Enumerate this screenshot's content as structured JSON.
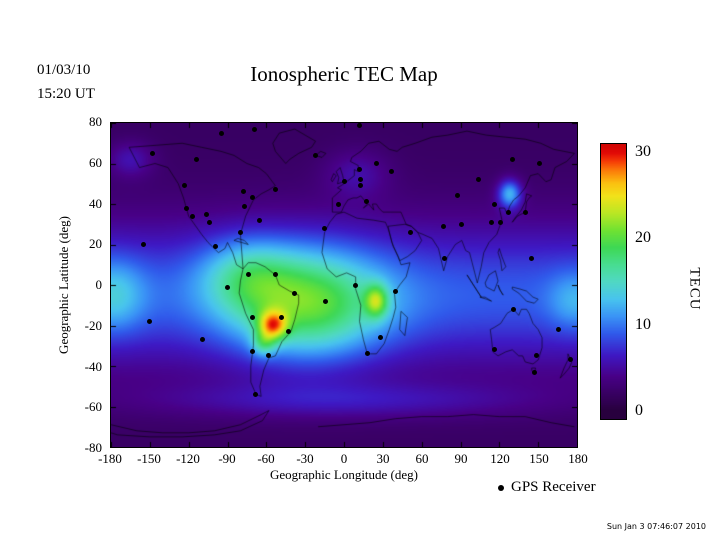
{
  "header": {
    "date": "01/03/10",
    "time": "15:20 UT",
    "title": "Ionospheric TEC Map"
  },
  "axes": {
    "x_label": "Geographic Longitude (deg)",
    "y_label": "Geographic Latitude (deg)",
    "x_ticks": [
      -180,
      -150,
      -120,
      -90,
      -60,
      -30,
      0,
      30,
      60,
      90,
      120,
      150,
      180
    ],
    "y_ticks": [
      80,
      60,
      40,
      20,
      0,
      -20,
      -40,
      -60,
      -80
    ],
    "lon_range": [
      -180,
      180
    ],
    "lat_range": [
      -80,
      80
    ]
  },
  "colorbar": {
    "label": "TECU",
    "ticks": [
      30,
      20,
      10,
      0
    ],
    "min": 0,
    "max": 30
  },
  "legend": {
    "label": "GPS Receiver"
  },
  "footer": {
    "timestamp": "Sun Jan  3 07:46:07 2010"
  },
  "chart_data": {
    "type": "heatmap",
    "title": "Ionospheric TEC Map",
    "units": "TECU",
    "value_range": [
      0,
      30
    ],
    "xlabel": "Geographic Longitude (deg)",
    "ylabel": "Geographic Latitude (deg)",
    "field": {
      "base": 2,
      "equator_lat": -5,
      "equator_sigma": 35,
      "equator_amp": 7,
      "blobs": [
        [
          -28,
          -10,
          58,
          27,
          12
        ],
        [
          -75,
          5,
          35,
          18,
          6
        ],
        [
          -55,
          -20,
          11,
          7,
          13
        ],
        [
          -62,
          -29,
          9,
          6,
          6
        ],
        [
          25,
          -8,
          9,
          8,
          10
        ],
        [
          128,
          45,
          9,
          7,
          9.5
        ],
        [
          -178,
          -5,
          24,
          18,
          5
        ],
        [
          178,
          -8,
          20,
          14,
          3.5
        ],
        [
          0,
          -57,
          150,
          9,
          3.5
        ],
        [
          10,
          55,
          25,
          12,
          3
        ],
        [
          -165,
          62,
          18,
          9,
          3.5
        ]
      ]
    },
    "colormap": [
      [
        0,
        40,
        0,
        62
      ],
      [
        4,
        72,
        0,
        135
      ],
      [
        6.5,
        62,
        25,
        196
      ],
      [
        9,
        48,
        90,
        235
      ],
      [
        11,
        58,
        148,
        246
      ],
      [
        13,
        72,
        196,
        238
      ],
      [
        15,
        80,
        216,
        196
      ],
      [
        17,
        72,
        221,
        145
      ],
      [
        19,
        62,
        216,
        84
      ],
      [
        21,
        112,
        226,
        50
      ],
      [
        23,
        186,
        231,
        36
      ],
      [
        25,
        242,
        226,
        26
      ],
      [
        26.5,
        251,
        192,
        16
      ],
      [
        28,
        251,
        122,
        9
      ],
      [
        29,
        246,
        62,
        6
      ],
      [
        30,
        226,
        10,
        6
      ],
      [
        32,
        190,
        0,
        0
      ]
    ],
    "receivers": [
      [
        12,
        79
      ],
      [
        -69,
        77
      ],
      [
        -95,
        75
      ],
      [
        -148,
        65
      ],
      [
        -22,
        64
      ],
      [
        -114,
        62
      ],
      [
        130,
        62
      ],
      [
        151,
        60
      ],
      [
        -123,
        49
      ],
      [
        -122,
        38
      ],
      [
        -117,
        34
      ],
      [
        -106,
        35
      ],
      [
        -104,
        31
      ],
      [
        -99,
        19
      ],
      [
        -80,
        26
      ],
      [
        -77,
        39
      ],
      [
        -71,
        43
      ],
      [
        -78,
        46
      ],
      [
        -53,
        47
      ],
      [
        -65,
        32
      ],
      [
        -155,
        20
      ],
      [
        145,
        13
      ],
      [
        -150,
        -18
      ],
      [
        -109,
        -27
      ],
      [
        -90,
        -1
      ],
      [
        -74,
        5
      ],
      [
        -53,
        5
      ],
      [
        -71,
        -16
      ],
      [
        -71,
        -33
      ],
      [
        -58,
        -35
      ],
      [
        -68,
        -54
      ],
      [
        -38,
        -4
      ],
      [
        -48,
        -16
      ],
      [
        -43,
        -23
      ],
      [
        -14,
        -8
      ],
      [
        -4,
        40
      ],
      [
        0,
        51
      ],
      [
        13,
        49
      ],
      [
        13,
        52
      ],
      [
        12,
        57
      ],
      [
        25,
        60
      ],
      [
        17,
        41
      ],
      [
        37,
        56
      ],
      [
        -15,
        28
      ],
      [
        40,
        -3
      ],
      [
        28,
        -26
      ],
      [
        9,
        0
      ],
      [
        18,
        -34
      ],
      [
        51,
        26
      ],
      [
        77,
        29
      ],
      [
        78,
        13
      ],
      [
        91,
        30
      ],
      [
        114,
        31
      ],
      [
        121,
        31
      ],
      [
        116,
        40
      ],
      [
        127,
        36
      ],
      [
        140,
        36
      ],
      [
        104,
        52
      ],
      [
        88,
        44
      ],
      [
        116,
        -32
      ],
      [
        149,
        -35
      ],
      [
        147,
        -43
      ],
      [
        175,
        -37
      ],
      [
        166,
        -22
      ],
      [
        131,
        -12
      ]
    ]
  }
}
